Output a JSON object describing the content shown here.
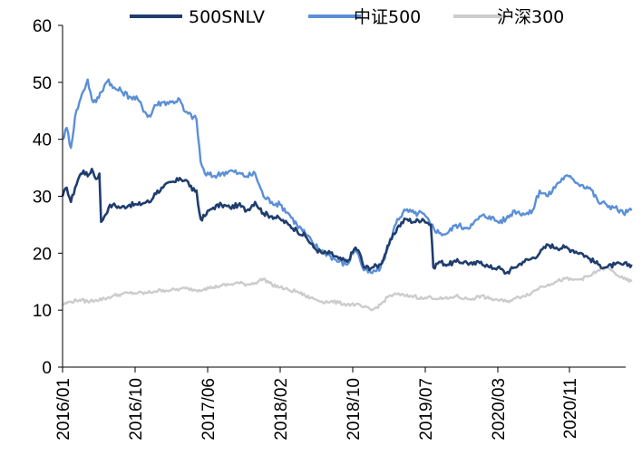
{
  "chart_data": {
    "type": "line",
    "title": "",
    "xlabel": "",
    "ylabel": "",
    "ylim": [
      0,
      60
    ],
    "yticks": [
      "0",
      "10",
      "20",
      "30",
      "40",
      "50",
      "60"
    ],
    "xticks": [
      "2016/01",
      "2016/10",
      "2017/06",
      "2018/02",
      "2018/10",
      "2019/07",
      "2020/03",
      "2020/11"
    ],
    "xlim": [
      0,
      69
    ],
    "x_unit": "months since 2016/01",
    "grid": false,
    "legend": "top",
    "series": [
      {
        "name": "500SNLV",
        "color": "#1f3d6e",
        "points": [
          [
            0,
            30.0
          ],
          [
            0.5,
            31.5
          ],
          [
            1,
            29.0
          ],
          [
            1.5,
            31.5
          ],
          [
            2,
            33.5
          ],
          [
            2.5,
            34.5
          ],
          [
            3,
            33.5
          ],
          [
            3.5,
            34.8
          ],
          [
            4,
            33.0
          ],
          [
            4.4,
            34.0
          ],
          [
            4.6,
            25.5
          ],
          [
            5,
            26.5
          ],
          [
            5.5,
            28.0
          ],
          [
            6,
            28.5
          ],
          [
            7,
            28.0
          ],
          [
            8,
            28.5
          ],
          [
            9,
            28.5
          ],
          [
            10,
            29.0
          ],
          [
            10.5,
            29.0
          ],
          [
            11,
            30.5
          ],
          [
            12,
            31.5
          ],
          [
            13,
            32.5
          ],
          [
            13.5,
            32.5
          ],
          [
            14,
            33.2
          ],
          [
            15,
            32.5
          ],
          [
            15.5,
            31.0
          ],
          [
            16,
            31.0
          ],
          [
            16.2,
            28.5
          ],
          [
            16.5,
            26.0
          ],
          [
            17,
            26.5
          ],
          [
            17.5,
            27.5
          ],
          [
            18,
            28.0
          ],
          [
            19,
            28.5
          ],
          [
            20,
            28.0
          ],
          [
            21,
            28.5
          ],
          [
            22,
            27.5
          ],
          [
            23,
            29.0
          ],
          [
            24,
            27.0
          ],
          [
            25,
            26.5
          ],
          [
            26,
            26.0
          ],
          [
            27,
            25.0
          ],
          [
            28,
            24.0
          ],
          [
            29,
            23.0
          ],
          [
            30,
            21.0
          ],
          [
            31,
            20.0
          ],
          [
            32,
            20.0
          ],
          [
            33,
            19.0
          ],
          [
            34,
            18.5
          ],
          [
            35,
            21.0
          ],
          [
            35.5,
            20.0
          ],
          [
            36,
            17.5
          ],
          [
            37,
            17.5
          ],
          [
            38,
            18.0
          ],
          [
            39,
            21.5
          ],
          [
            40,
            24.5
          ],
          [
            41,
            26.0
          ],
          [
            42,
            25.5
          ],
          [
            43,
            26.0
          ],
          [
            44,
            25.0
          ],
          [
            44.3,
            17.5
          ],
          [
            45,
            18.5
          ],
          [
            46,
            18.0
          ],
          [
            47,
            18.5
          ],
          [
            48,
            18.5
          ],
          [
            49,
            18.0
          ],
          [
            50,
            18.5
          ],
          [
            51,
            17.5
          ],
          [
            52,
            17.5
          ],
          [
            53,
            16.5
          ],
          [
            54,
            17.5
          ],
          [
            55,
            18.5
          ],
          [
            56,
            19.0
          ],
          [
            57,
            20.0
          ],
          [
            58,
            21.5
          ],
          [
            59,
            21.0
          ],
          [
            60,
            21.0
          ],
          [
            61,
            20.5
          ],
          [
            62,
            20.0
          ],
          [
            63,
            19.0
          ],
          [
            64,
            18.0
          ],
          [
            65,
            17.5
          ],
          [
            66,
            18.0
          ],
          [
            67,
            18.0
          ],
          [
            68,
            18.0
          ]
        ]
      },
      {
        "name": "中证500",
        "color": "#5b8fd6",
        "points": [
          [
            0,
            40.0
          ],
          [
            0.5,
            42.0
          ],
          [
            1,
            38.5
          ],
          [
            1.5,
            44.0
          ],
          [
            2,
            46.5
          ],
          [
            2.5,
            48.5
          ],
          [
            3,
            50.5
          ],
          [
            3.5,
            47.0
          ],
          [
            4,
            46.5
          ],
          [
            5,
            49.5
          ],
          [
            5.5,
            50.5
          ],
          [
            6,
            49.0
          ],
          [
            7,
            48.5
          ],
          [
            8,
            47.5
          ],
          [
            9,
            47.0
          ],
          [
            10,
            44.5
          ],
          [
            10.5,
            44.0
          ],
          [
            11,
            46.0
          ],
          [
            12,
            46.5
          ],
          [
            13,
            46.5
          ],
          [
            14,
            47.0
          ],
          [
            14.5,
            45.0
          ],
          [
            15,
            44.5
          ],
          [
            16,
            43.5
          ],
          [
            16.5,
            36.0
          ],
          [
            17,
            34.0
          ],
          [
            18,
            33.5
          ],
          [
            19,
            34.0
          ],
          [
            20,
            34.5
          ],
          [
            21,
            34.0
          ],
          [
            22,
            33.5
          ],
          [
            23,
            34.0
          ],
          [
            24,
            30.0
          ],
          [
            25,
            29.0
          ],
          [
            26,
            28.5
          ],
          [
            27,
            27.0
          ],
          [
            28,
            25.0
          ],
          [
            29,
            23.5
          ],
          [
            30,
            21.5
          ],
          [
            31,
            20.5
          ],
          [
            32,
            19.5
          ],
          [
            33,
            18.5
          ],
          [
            34,
            18.0
          ],
          [
            35,
            21.0
          ],
          [
            35.5,
            19.0
          ],
          [
            36,
            17.0
          ],
          [
            37,
            16.5
          ],
          [
            38,
            17.5
          ],
          [
            39,
            21.5
          ],
          [
            40,
            26.0
          ],
          [
            41,
            27.5
          ],
          [
            42,
            27.0
          ],
          [
            43,
            27.0
          ],
          [
            44,
            25.0
          ],
          [
            45,
            23.5
          ],
          [
            46,
            23.5
          ],
          [
            47,
            25.0
          ],
          [
            48,
            24.5
          ],
          [
            49,
            25.0
          ],
          [
            50,
            26.5
          ],
          [
            51,
            26.5
          ],
          [
            52,
            25.5
          ],
          [
            53,
            26.0
          ],
          [
            54,
            27.5
          ],
          [
            55,
            27.0
          ],
          [
            56,
            27.0
          ],
          [
            57,
            31.0
          ],
          [
            58,
            30.0
          ],
          [
            59,
            32.0
          ],
          [
            60,
            33.5
          ],
          [
            61,
            33.0
          ],
          [
            62,
            32.0
          ],
          [
            63,
            31.5
          ],
          [
            64,
            29.0
          ],
          [
            65,
            28.5
          ],
          [
            66,
            28.0
          ],
          [
            67,
            27.0
          ],
          [
            68,
            27.5
          ]
        ]
      },
      {
        "name": "沪深300",
        "color": "#cccccc",
        "points": [
          [
            0,
            11.0
          ],
          [
            1,
            11.5
          ],
          [
            2,
            11.8
          ],
          [
            3,
            11.5
          ],
          [
            4,
            11.8
          ],
          [
            5,
            12.0
          ],
          [
            6,
            12.5
          ],
          [
            7,
            12.8
          ],
          [
            8,
            13.0
          ],
          [
            9,
            13.0
          ],
          [
            10,
            13.0
          ],
          [
            11,
            13.3
          ],
          [
            12,
            13.5
          ],
          [
            13,
            13.5
          ],
          [
            14,
            13.7
          ],
          [
            15,
            13.8
          ],
          [
            16,
            13.5
          ],
          [
            17,
            13.8
          ],
          [
            18,
            14.0
          ],
          [
            19,
            14.3
          ],
          [
            20,
            14.5
          ],
          [
            21,
            14.8
          ],
          [
            22,
            14.5
          ],
          [
            23,
            14.8
          ],
          [
            24,
            15.5
          ],
          [
            25,
            14.5
          ],
          [
            26,
            14.0
          ],
          [
            27,
            13.5
          ],
          [
            28,
            13.3
          ],
          [
            29,
            12.5
          ],
          [
            30,
            12.0
          ],
          [
            31,
            11.5
          ],
          [
            32,
            11.5
          ],
          [
            33,
            11.3
          ],
          [
            34,
            11.0
          ],
          [
            35,
            11.0
          ],
          [
            36,
            10.5
          ],
          [
            37,
            10.0
          ],
          [
            38,
            11.0
          ],
          [
            39,
            12.5
          ],
          [
            40,
            12.8
          ],
          [
            41,
            12.5
          ],
          [
            42,
            12.5
          ],
          [
            43,
            12.0
          ],
          [
            44,
            12.3
          ],
          [
            45,
            12.0
          ],
          [
            46,
            12.0
          ],
          [
            47,
            12.5
          ],
          [
            48,
            12.0
          ],
          [
            49,
            12.0
          ],
          [
            50,
            12.5
          ],
          [
            51,
            12.0
          ],
          [
            52,
            11.8
          ],
          [
            53,
            11.5
          ],
          [
            54,
            12.0
          ],
          [
            55,
            12.5
          ],
          [
            56,
            13.0
          ],
          [
            57,
            14.0
          ],
          [
            58,
            14.5
          ],
          [
            59,
            15.0
          ],
          [
            60,
            15.5
          ],
          [
            61,
            15.3
          ],
          [
            62,
            15.5
          ],
          [
            63,
            16.0
          ],
          [
            64,
            17.0
          ],
          [
            65,
            17.5
          ],
          [
            66,
            16.5
          ],
          [
            67,
            15.5
          ],
          [
            68,
            15.0
          ]
        ]
      }
    ]
  }
}
